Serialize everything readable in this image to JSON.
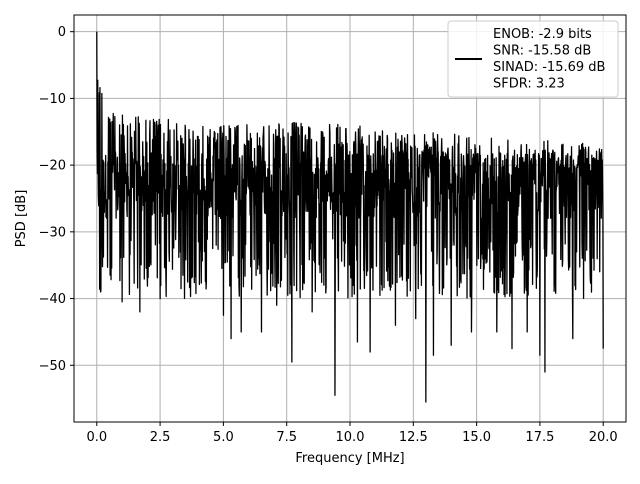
{
  "chart_data": {
    "type": "line",
    "title": "",
    "xlabel": "Frequency [MHz]",
    "ylabel": "PSD [dB]",
    "xlim": [
      -0.9,
      20.9
    ],
    "ylim": [
      -58.5,
      2.5
    ],
    "xticks": [
      0.0,
      2.5,
      5.0,
      7.5,
      10.0,
      12.5,
      15.0,
      17.5,
      20.0
    ],
    "xtick_labels": [
      "0.0",
      "2.5",
      "5.0",
      "7.5",
      "10.0",
      "12.5",
      "15.0",
      "17.5",
      "20.0"
    ],
    "yticks": [
      0,
      -10,
      -20,
      -30,
      -40,
      -50
    ],
    "ytick_labels": [
      "0",
      "−10",
      "−20",
      "−30",
      "−40",
      "−50"
    ],
    "grid": true,
    "legend_position": "top-right",
    "legend": {
      "line_color": "#000000",
      "lines": [
        "ENOB: -2.9 bits",
        "SNR: -15.58 dB",
        "SINAD: -15.69 dB",
        "SFDR: 3.23"
      ]
    },
    "series": [
      {
        "color": "#000000",
        "x_range": [
          0.0,
          20.0
        ],
        "approx_points": 1600,
        "envelope_upper_approx": [
          [
            0.0,
            0.0
          ],
          [
            0.05,
            -5
          ],
          [
            0.2,
            -8
          ],
          [
            0.5,
            -11
          ],
          [
            1.0,
            -12
          ],
          [
            2.5,
            -13
          ],
          [
            5.0,
            -14
          ],
          [
            7.5,
            -13.5
          ],
          [
            10.0,
            -14
          ],
          [
            12.5,
            -15
          ],
          [
            15.0,
            -15.5
          ],
          [
            17.5,
            -16
          ],
          [
            20.0,
            -17
          ]
        ],
        "median_level_db": -25,
        "notable_minima": [
          {
            "x": 0.15,
            "y": -39
          },
          {
            "x": 1.0,
            "y": -40.5
          },
          {
            "x": 1.7,
            "y": -42
          },
          {
            "x": 2.5,
            "y": -40
          },
          {
            "x": 5.0,
            "y": -42.5
          },
          {
            "x": 5.3,
            "y": -46
          },
          {
            "x": 5.7,
            "y": -45
          },
          {
            "x": 6.5,
            "y": -45
          },
          {
            "x": 7.1,
            "y": -41
          },
          {
            "x": 7.7,
            "y": -49.5
          },
          {
            "x": 8.5,
            "y": -42
          },
          {
            "x": 9.4,
            "y": -54.5
          },
          {
            "x": 10.3,
            "y": -46.5
          },
          {
            "x": 10.8,
            "y": -48
          },
          {
            "x": 11.8,
            "y": -44
          },
          {
            "x": 12.6,
            "y": -43
          },
          {
            "x": 13.0,
            "y": -55.5
          },
          {
            "x": 13.3,
            "y": -48.5
          },
          {
            "x": 14.0,
            "y": -47
          },
          {
            "x": 14.8,
            "y": -45
          },
          {
            "x": 15.8,
            "y": -45
          },
          {
            "x": 16.4,
            "y": -47.5
          },
          {
            "x": 17.0,
            "y": -45
          },
          {
            "x": 17.5,
            "y": -48.5
          },
          {
            "x": 17.7,
            "y": -51
          },
          {
            "x": 18.8,
            "y": -46
          },
          {
            "x": 20.0,
            "y": -47.5
          }
        ]
      }
    ]
  }
}
